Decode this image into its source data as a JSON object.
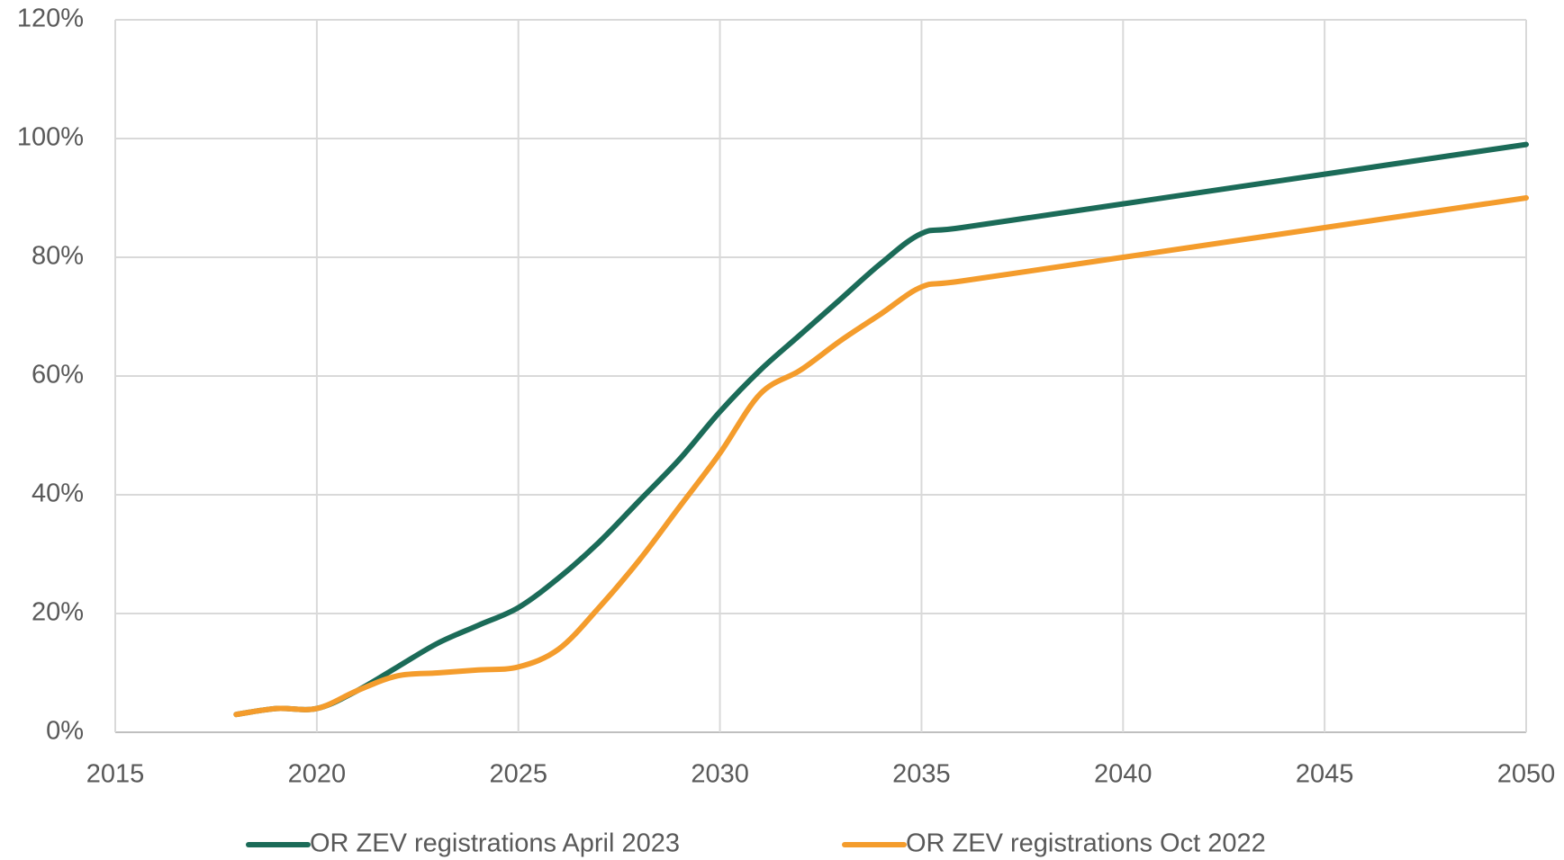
{
  "chart_data": {
    "type": "line",
    "xlim": [
      2015,
      2050
    ],
    "xticks": [
      2015,
      2020,
      2025,
      2030,
      2035,
      2040,
      2045,
      2050
    ],
    "ylim": [
      0,
      120
    ],
    "yticks": [
      {
        "value": 0,
        "label": "0%"
      },
      {
        "value": 20,
        "label": "20%"
      },
      {
        "value": 40,
        "label": "40%"
      },
      {
        "value": 60,
        "label": "60%"
      },
      {
        "value": 80,
        "label": "80%"
      },
      {
        "value": 100,
        "label": "100%"
      },
      {
        "value": 120,
        "label": "120%"
      }
    ],
    "grid": true,
    "legend": "bottom",
    "x": [
      2018,
      2019,
      2020,
      2021,
      2022,
      2023,
      2024,
      2025,
      2026,
      2027,
      2028,
      2029,
      2030,
      2031,
      2032,
      2033,
      2034,
      2035,
      2036,
      2040,
      2045,
      2050
    ],
    "series": [
      {
        "name": "OR ZEV registrations April 2023",
        "color": "#1b6b58",
        "values": [
          3,
          4,
          4,
          7,
          11,
          15,
          18,
          21,
          26,
          32,
          39,
          46,
          54,
          61,
          67,
          73,
          79,
          84,
          85,
          89,
          94,
          99
        ]
      },
      {
        "name": "OR ZEV registrations Oct 2022",
        "color": "#f49c2c",
        "values": [
          3,
          4,
          4,
          7,
          9.5,
          10,
          10.5,
          11,
          14,
          21,
          29,
          38,
          47,
          57,
          61,
          66,
          70.5,
          75,
          76,
          80,
          85,
          90
        ]
      }
    ]
  }
}
